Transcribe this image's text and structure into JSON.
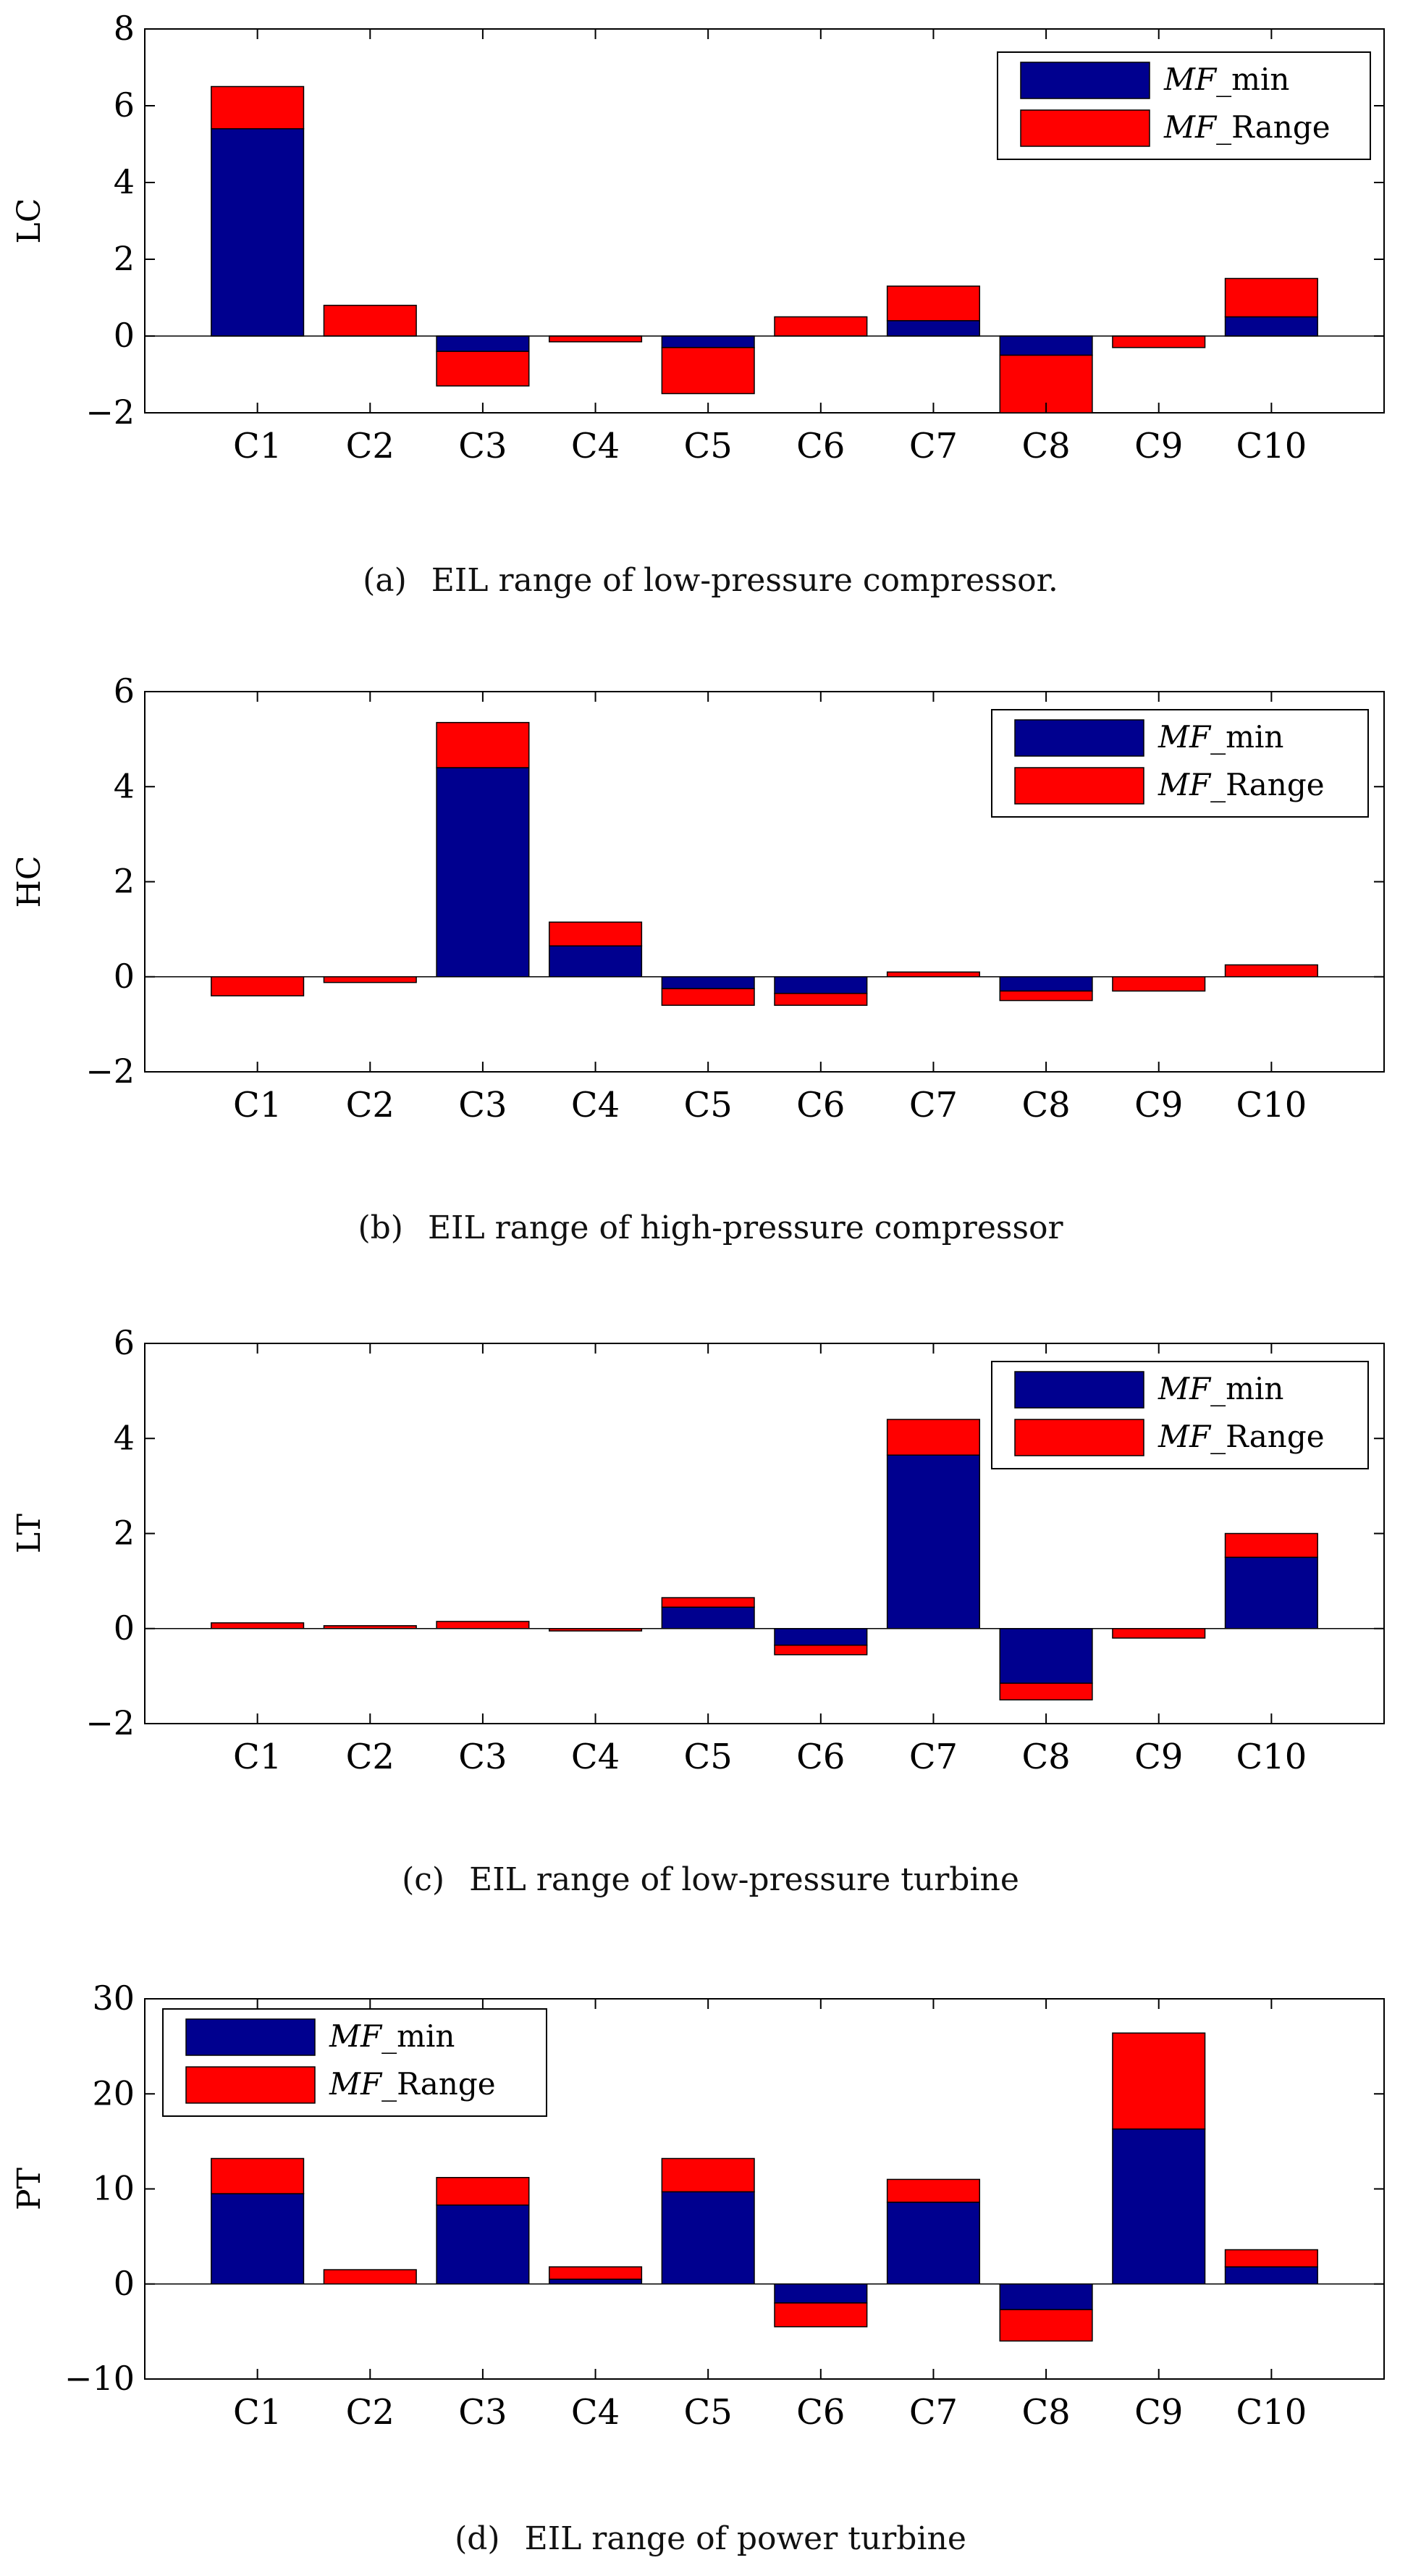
{
  "chart_data": [
    {
      "type": "bar",
      "stacked": true,
      "caption_label": "(a)",
      "caption": "EIL range of low-pressure compressor.",
      "ylabel": "LC",
      "xlabel": "",
      "ylim": [
        -2,
        8
      ],
      "yticks": [
        -2,
        0,
        2,
        4,
        6,
        8
      ],
      "ytick_labels": [
        "−2",
        "0",
        "2",
        "4",
        "6",
        "8"
      ],
      "legend_position": "top-right",
      "categories": [
        "C1",
        "C2",
        "C3",
        "C4",
        "C5",
        "C6",
        "C7",
        "C8",
        "C9",
        "C10"
      ],
      "series": [
        {
          "name": "MF_min",
          "legend_italic": "MF",
          "legend_rest": "_min",
          "color": "#00008F",
          "values": [
            5.4,
            0.0,
            -0.4,
            0.0,
            -0.3,
            0.0,
            0.4,
            -0.5,
            0.0,
            0.5
          ]
        },
        {
          "name": "MF_Range",
          "legend_italic": "MF",
          "legend_rest": "_Range",
          "color": "#FF0000",
          "values": [
            1.1,
            0.8,
            -0.9,
            -0.15,
            -1.2,
            0.5,
            0.9,
            -1.5,
            -0.3,
            1.0
          ]
        }
      ]
    },
    {
      "type": "bar",
      "stacked": true,
      "caption_label": "(b)",
      "caption": "EIL range of high-pressure compressor",
      "ylabel": "HC",
      "xlabel": "",
      "ylim": [
        -2,
        6
      ],
      "yticks": [
        -2,
        0,
        2,
        4,
        6
      ],
      "ytick_labels": [
        "−2",
        "0",
        "2",
        "4",
        "6"
      ],
      "legend_position": "top-right",
      "categories": [
        "C1",
        "C2",
        "C3",
        "C4",
        "C5",
        "C6",
        "C7",
        "C8",
        "C9",
        "C10"
      ],
      "series": [
        {
          "name": "MF_min",
          "legend_italic": "MF",
          "legend_rest": "_min",
          "color": "#00008F",
          "values": [
            0.0,
            0.0,
            4.4,
            0.65,
            -0.25,
            -0.35,
            0.0,
            -0.3,
            0.0,
            0.0
          ]
        },
        {
          "name": "MF_Range",
          "legend_italic": "MF",
          "legend_rest": "_Range",
          "color": "#FF0000",
          "values": [
            -0.4,
            -0.12,
            0.95,
            0.5,
            -0.35,
            -0.25,
            0.1,
            -0.2,
            -0.3,
            0.25
          ]
        }
      ]
    },
    {
      "type": "bar",
      "stacked": true,
      "caption_label": "(c)",
      "caption": "EIL range of low-pressure turbine",
      "ylabel": "LT",
      "xlabel": "",
      "ylim": [
        -2,
        6
      ],
      "yticks": [
        -2,
        0,
        2,
        4,
        6
      ],
      "ytick_labels": [
        "−2",
        "0",
        "2",
        "4",
        "6"
      ],
      "legend_position": "top-right",
      "categories": [
        "C1",
        "C2",
        "C3",
        "C4",
        "C5",
        "C6",
        "C7",
        "C8",
        "C9",
        "C10"
      ],
      "series": [
        {
          "name": "MF_min",
          "legend_italic": "MF",
          "legend_rest": "_min",
          "color": "#00008F",
          "values": [
            0.0,
            0.0,
            0.0,
            0.0,
            0.45,
            -0.35,
            3.65,
            -1.15,
            0.0,
            1.5
          ]
        },
        {
          "name": "MF_Range",
          "legend_italic": "MF",
          "legend_rest": "_Range",
          "color": "#FF0000",
          "values": [
            0.12,
            0.06,
            0.15,
            -0.05,
            0.2,
            -0.2,
            0.75,
            -0.35,
            -0.2,
            0.5
          ]
        }
      ]
    },
    {
      "type": "bar",
      "stacked": true,
      "caption_label": "(d)",
      "caption": "EIL range of power turbine",
      "ylabel": "PT",
      "xlabel": "",
      "ylim": [
        -10,
        30
      ],
      "yticks": [
        -10,
        0,
        10,
        20,
        30
      ],
      "ytick_labels": [
        "−10",
        "0",
        "10",
        "20",
        "30"
      ],
      "legend_position": "top-left",
      "categories": [
        "C1",
        "C2",
        "C3",
        "C4",
        "C5",
        "C6",
        "C7",
        "C8",
        "C9",
        "C10"
      ],
      "series": [
        {
          "name": "MF_min",
          "legend_italic": "MF",
          "legend_rest": "_min",
          "color": "#00008F",
          "values": [
            9.5,
            0.0,
            8.3,
            0.5,
            9.7,
            -2.0,
            8.6,
            -2.7,
            16.3,
            1.8
          ]
        },
        {
          "name": "MF_Range",
          "legend_italic": "MF",
          "legend_rest": "_Range",
          "color": "#FF0000",
          "values": [
            3.7,
            1.5,
            2.9,
            1.3,
            3.5,
            -2.5,
            2.4,
            -3.3,
            10.1,
            1.8
          ]
        }
      ]
    }
  ]
}
